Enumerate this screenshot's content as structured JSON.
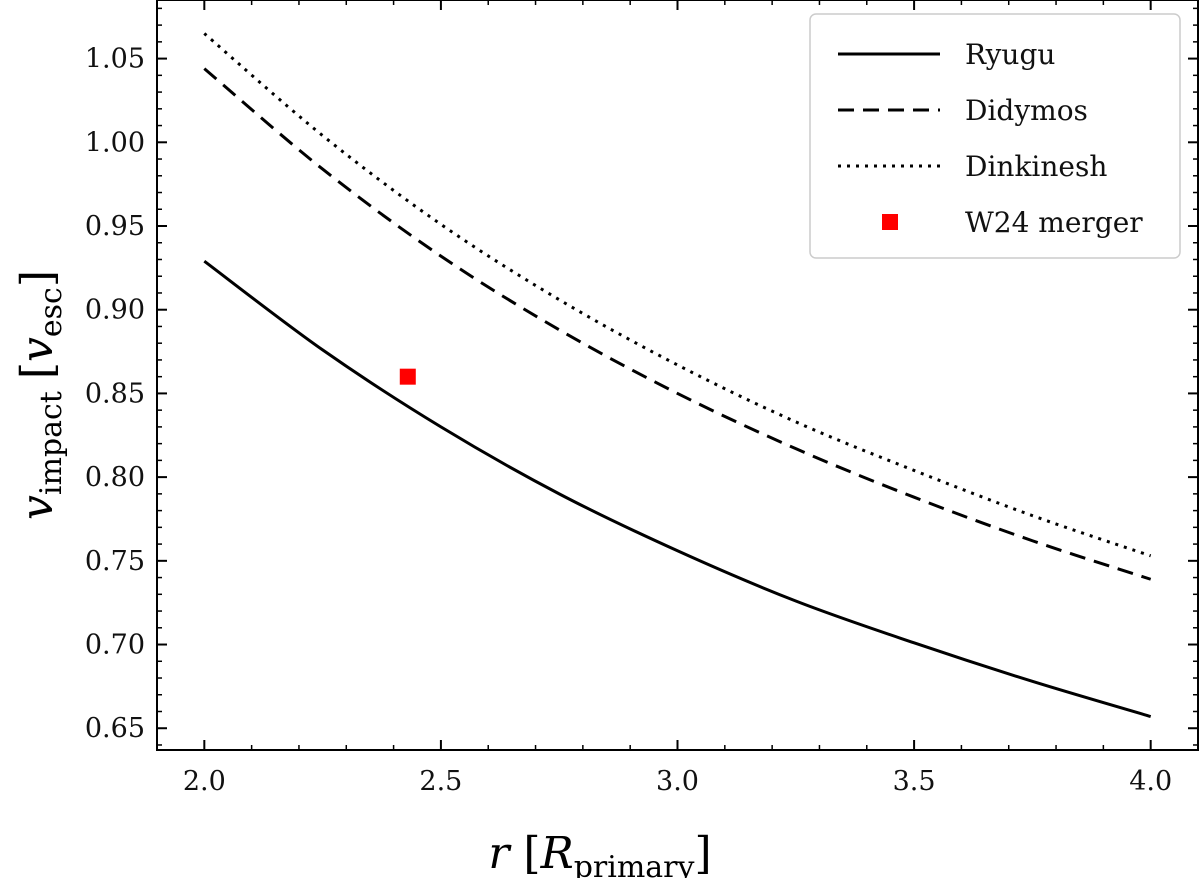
{
  "chart_data": {
    "type": "line",
    "title": "",
    "xlabel": {
      "main": "r",
      "sub": "primary",
      "unit_symbol": "R"
    },
    "ylabel": {
      "main": "v",
      "sub": "impact",
      "unit_symbol": "v",
      "unit_sub": "esc"
    },
    "xlim": [
      1.9,
      4.1
    ],
    "ylim": [
      0.637,
      1.085
    ],
    "x_ticks": [
      2.0,
      2.5,
      3.0,
      3.5,
      4.0
    ],
    "x_tick_labels": [
      "2.0",
      "2.5",
      "3.0",
      "3.5",
      "4.0"
    ],
    "y_ticks": [
      0.65,
      0.7,
      0.75,
      0.8,
      0.85,
      0.9,
      0.95,
      1.0,
      1.05
    ],
    "y_tick_labels": [
      "0.65",
      "0.70",
      "0.75",
      "0.80",
      "0.85",
      "0.90",
      "0.95",
      "1.00",
      "1.05"
    ],
    "legend_position": "top-right",
    "series": [
      {
        "name": "Ryugu",
        "style": "solid",
        "color": "#000000",
        "x": [
          2.0,
          2.25,
          2.5,
          2.75,
          3.0,
          3.25,
          3.5,
          3.75,
          4.0
        ],
        "values": [
          0.929,
          0.876,
          0.83,
          0.79,
          0.756,
          0.726,
          0.701,
          0.678,
          0.657
        ]
      },
      {
        "name": "Didymos",
        "style": "dashed",
        "color": "#000000",
        "x": [
          2.0,
          2.25,
          2.5,
          2.75,
          3.0,
          3.25,
          3.5,
          3.75,
          4.0
        ],
        "values": [
          1.044,
          0.984,
          0.932,
          0.888,
          0.85,
          0.817,
          0.788,
          0.762,
          0.739
        ]
      },
      {
        "name": "Dinkinesh",
        "style": "dotted",
        "color": "#000000",
        "x": [
          2.0,
          2.25,
          2.5,
          2.75,
          3.0,
          3.25,
          3.5,
          3.75,
          4.0
        ],
        "values": [
          1.065,
          1.004,
          0.951,
          0.906,
          0.867,
          0.833,
          0.804,
          0.777,
          0.753
        ]
      }
    ],
    "points": [
      {
        "name": "W24 merger",
        "marker": "square",
        "color": "#ff0000",
        "x": 2.43,
        "y": 0.86
      }
    ]
  }
}
